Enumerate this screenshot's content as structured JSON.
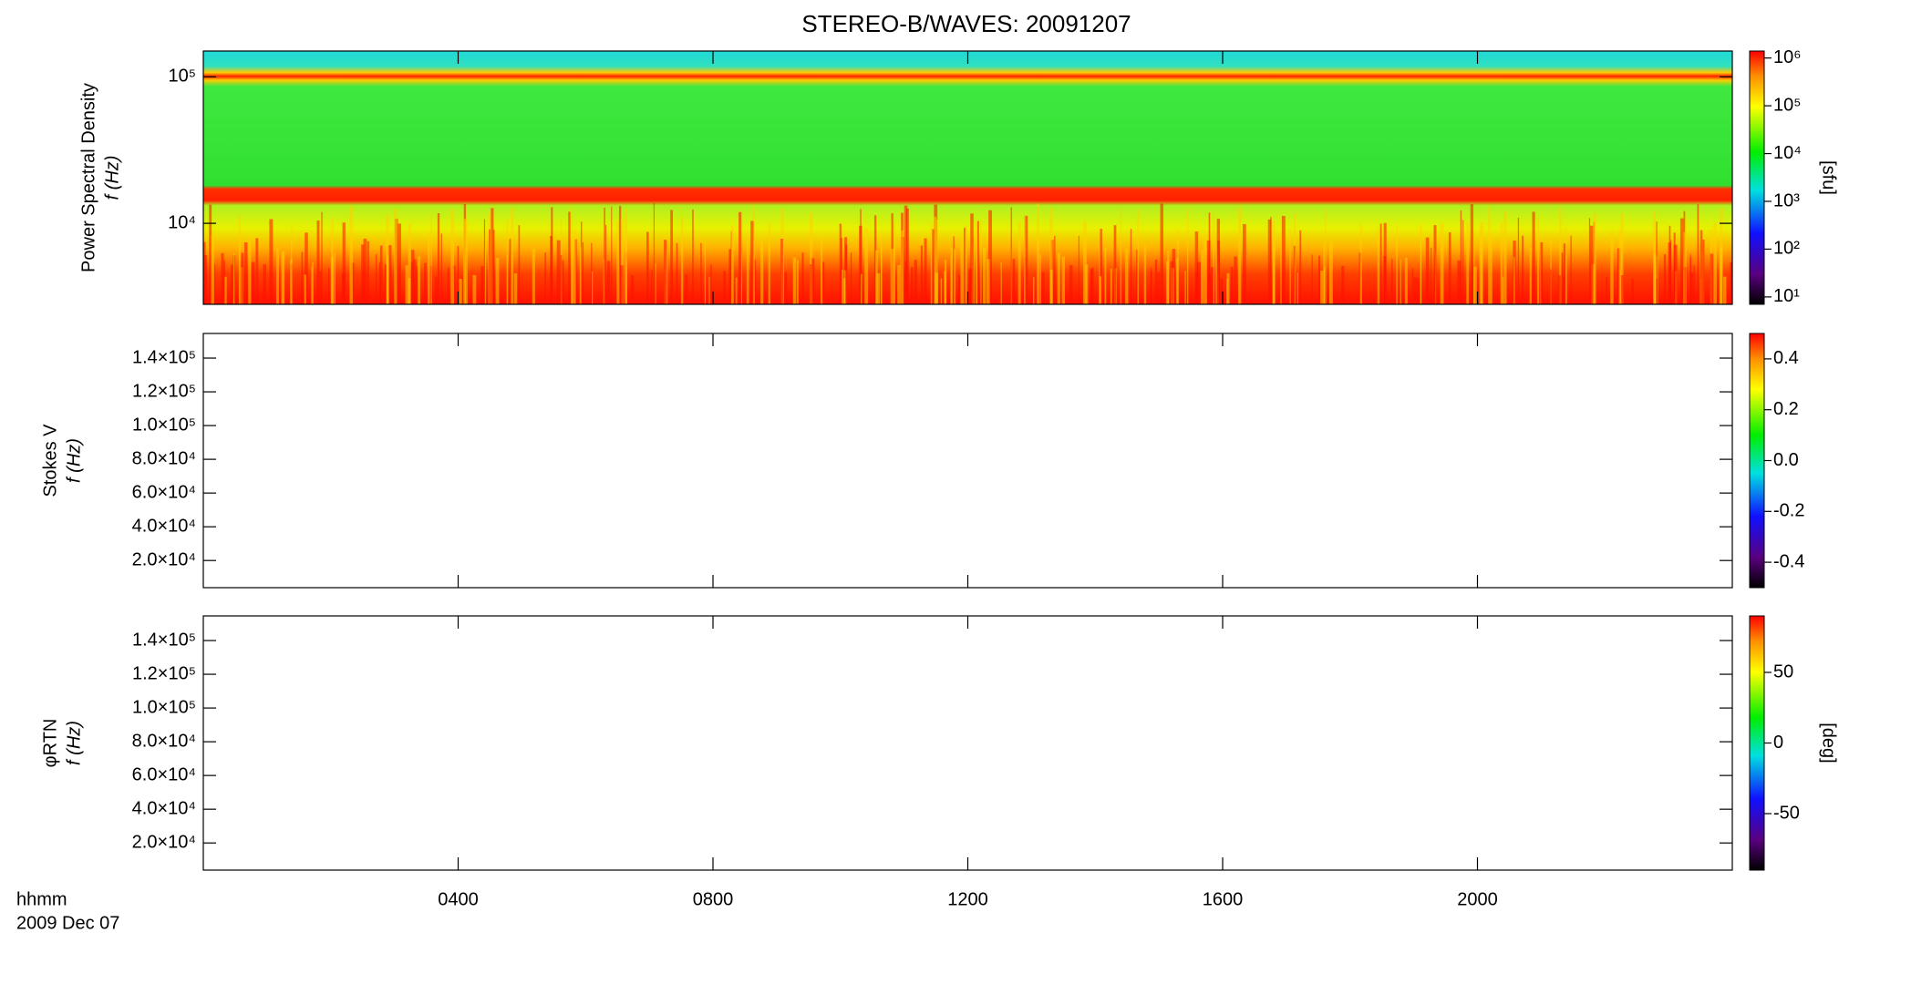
{
  "title": "STEREO-B/WAVES: 20091207",
  "x_label": "hhmm",
  "date": "2009 Dec 07",
  "chart_data": [
    {
      "type": "spectrogram",
      "y_label": [
        "Power Spectral Density",
        "f (Hz)"
      ],
      "log_y": true,
      "ylim": [
        2800,
        150000
      ],
      "yticks": [
        {
          "value": 10000,
          "label": "10⁴"
        },
        {
          "value": 100000,
          "label": "10⁵"
        }
      ],
      "log_c": true,
      "clim": [
        7,
        1400000
      ],
      "clabel": "[sfu]",
      "cticks": [
        {
          "value": 10,
          "label": "10¹"
        },
        {
          "value": 100,
          "label": "10²"
        },
        {
          "value": 1000,
          "label": "10³"
        },
        {
          "value": 10000,
          "label": "10⁴"
        },
        {
          "value": 100000,
          "label": "10⁵"
        },
        {
          "value": 1000000,
          "label": "10⁶"
        }
      ]
    },
    {
      "type": "spectrogram",
      "y_label": [
        "Stokes V",
        "f (Hz)"
      ],
      "log_y": false,
      "ylim": [
        3900,
        154600
      ],
      "yticks": [
        {
          "value": 20000,
          "label": "2.0×10⁴"
        },
        {
          "value": 40000,
          "label": "4.0×10⁴"
        },
        {
          "value": 60000,
          "label": "6.0×10⁴"
        },
        {
          "value": 80000,
          "label": "8.0×10⁴"
        },
        {
          "value": 100000,
          "label": "1.0×10⁵"
        },
        {
          "value": 120000,
          "label": "1.2×10⁵"
        },
        {
          "value": 140000,
          "label": "1.4×10⁵"
        }
      ],
      "log_c": false,
      "clim": [
        -0.5,
        0.5
      ],
      "cticks": [
        -0.4,
        -0.2,
        {
          "value": 0,
          "label": "0.0"
        },
        0.2,
        0.4
      ]
    },
    {
      "type": "spectrogram",
      "y_label": [
        "φRTN",
        "f (Hz)"
      ],
      "log_y": false,
      "ylim": [
        3900,
        154600
      ],
      "yticks": [
        {
          "value": 20000,
          "label": "2.0×10⁴"
        },
        {
          "value": 40000,
          "label": "4.0×10⁴"
        },
        {
          "value": 60000,
          "label": "6.0×10⁴"
        },
        {
          "value": 80000,
          "label": "8.0×10⁴"
        },
        {
          "value": 100000,
          "label": "1.0×10⁵"
        },
        {
          "value": 120000,
          "label": "1.2×10⁵"
        },
        {
          "value": 140000,
          "label": "1.4×10⁵"
        }
      ],
      "log_c": false,
      "clim": [
        -90,
        90
      ],
      "clabel": "[deg]",
      "cticks": [
        -50,
        0,
        50
      ],
      "xlim": [
        0,
        24
      ],
      "xticks": [
        {
          "value": 4,
          "label": "0400"
        },
        {
          "value": 8,
          "label": "0800"
        },
        {
          "value": 12,
          "label": "1200"
        },
        {
          "value": 16,
          "label": "1600"
        },
        {
          "value": 20,
          "label": "2000"
        }
      ]
    }
  ]
}
